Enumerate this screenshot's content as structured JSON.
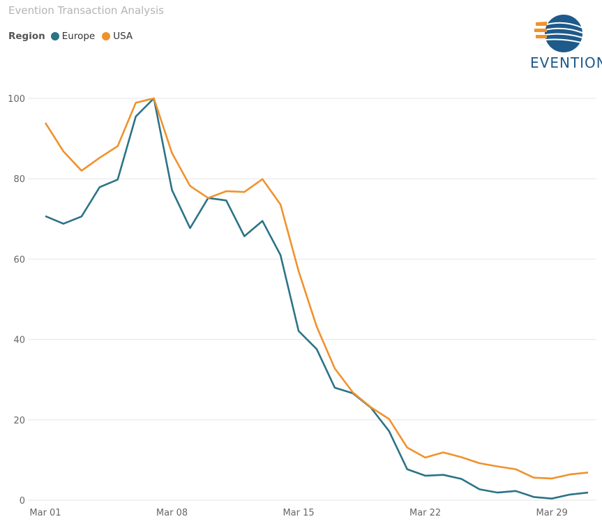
{
  "header": {
    "title": "Evention Transaction Analysis",
    "legend_label": "Region"
  },
  "logo": {
    "text": "EVENTION",
    "icon": "evention-globe-logo"
  },
  "colors": {
    "Europe": "#2b7387",
    "USA": "#f0922c",
    "grid": "#e5e5e5",
    "logo_blue": "#1e5a8a"
  },
  "chart_data": {
    "type": "line",
    "title": "Evention Transaction Analysis",
    "xlabel": "",
    "ylabel": "",
    "ylim": [
      0,
      100
    ],
    "yticks": [
      "0",
      "20",
      "40",
      "60",
      "80",
      "100"
    ],
    "xticks": [
      "Mar 01",
      "Mar 08",
      "Mar 15",
      "Mar 22",
      "Mar 29"
    ],
    "grid": true,
    "legend_position": "top-left",
    "x": [
      "Mar 01",
      "Mar 02",
      "Mar 03",
      "Mar 04",
      "Mar 05",
      "Mar 06",
      "Mar 07",
      "Mar 08",
      "Mar 09",
      "Mar 10",
      "Mar 11",
      "Mar 12",
      "Mar 13",
      "Mar 14",
      "Mar 15",
      "Mar 16",
      "Mar 17",
      "Mar 18",
      "Mar 19",
      "Mar 20",
      "Mar 21",
      "Mar 22",
      "Mar 23",
      "Mar 24",
      "Mar 25",
      "Mar 26",
      "Mar 27",
      "Mar 28",
      "Mar 29",
      "Mar 30",
      "Mar 31"
    ],
    "series": [
      {
        "name": "Europe",
        "values": [
          70.7,
          68.8,
          70.6,
          77.9,
          79.8,
          95.5,
          100,
          77.2,
          67.7,
          75.2,
          74.6,
          65.7,
          69.5,
          61,
          42.1,
          37.6,
          28,
          26.6,
          23,
          17.2,
          7.7,
          6.1,
          6.3,
          5.3,
          2.7,
          1.9,
          2.3,
          0.8,
          0.4,
          1.4,
          1.9
        ]
      },
      {
        "name": "USA",
        "values": [
          93.9,
          86.8,
          82,
          85.2,
          88.1,
          98.9,
          100,
          86.4,
          78.2,
          75.2,
          76.9,
          76.7,
          79.9,
          73.6,
          57,
          43.2,
          32.8,
          26.8,
          23.1,
          20.2,
          13.1,
          10.6,
          11.9,
          10.7,
          9.2,
          8.4,
          7.7,
          5.6,
          5.4,
          6.4,
          6.9
        ]
      }
    ]
  }
}
